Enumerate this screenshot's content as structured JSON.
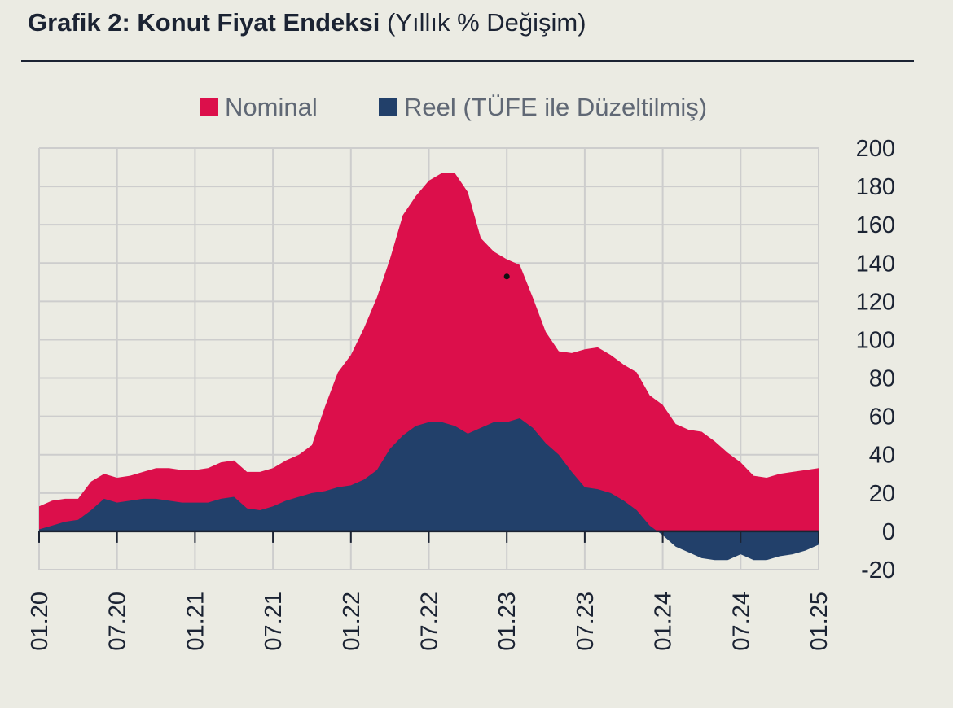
{
  "header": {
    "title_main": "Grafik 2: Konut Fiyat Endeksi",
    "title_sub": "(Yıllık % Değişim)"
  },
  "colors": {
    "nominal": "#dc0f4b",
    "reel": "#22406a",
    "grid": "#cdcdcd",
    "background": "#ebebe3",
    "text": "#1b2333"
  },
  "chart_data": {
    "type": "area",
    "title": "Grafik 2: Konut Fiyat Endeksi",
    "subtitle": "(Yıllık % Değişim)",
    "xlabel": "",
    "ylabel": "",
    "y_axis_position": "right",
    "ylim": [
      -20,
      200
    ],
    "yticks": [
      200,
      180,
      160,
      140,
      120,
      100,
      80,
      60,
      40,
      20,
      0,
      -20
    ],
    "xtick_labels": [
      "01.20",
      "07.20",
      "01.21",
      "07.21",
      "01.22",
      "07.22",
      "01.23",
      "07.23",
      "01.24",
      "07.24",
      "01.25"
    ],
    "grid": true,
    "legend_position": "top-center",
    "x": [
      "01.20",
      "02.20",
      "03.20",
      "04.20",
      "05.20",
      "06.20",
      "07.20",
      "08.20",
      "09.20",
      "10.20",
      "11.20",
      "12.20",
      "01.21",
      "02.21",
      "03.21",
      "04.21",
      "05.21",
      "06.21",
      "07.21",
      "08.21",
      "09.21",
      "10.21",
      "11.21",
      "12.21",
      "01.22",
      "02.22",
      "03.22",
      "04.22",
      "05.22",
      "06.22",
      "07.22",
      "08.22",
      "09.22",
      "10.22",
      "11.22",
      "12.22",
      "01.23",
      "02.23",
      "03.23",
      "04.23",
      "05.23",
      "06.23",
      "07.23",
      "08.23",
      "09.23",
      "10.23",
      "11.23",
      "12.23",
      "01.24",
      "02.24",
      "03.24",
      "04.24",
      "05.24",
      "06.24",
      "07.24",
      "08.24",
      "09.24",
      "10.24",
      "11.24",
      "12.24",
      "01.25"
    ],
    "series": [
      {
        "name": "Nominal",
        "values": [
          13,
          16,
          17,
          17,
          26,
          30,
          28,
          29,
          31,
          33,
          33,
          32,
          32,
          33,
          36,
          37,
          31,
          31,
          33,
          37,
          40,
          45,
          65,
          83,
          92,
          106,
          122,
          142,
          165,
          175,
          183,
          187,
          187,
          177,
          153,
          146,
          142,
          139,
          122,
          104,
          94,
          93,
          95,
          96,
          92,
          87,
          83,
          71,
          66,
          56,
          53,
          52,
          47,
          41,
          36,
          29,
          28,
          30,
          31,
          32,
          33
        ]
      },
      {
        "name": "Reel (TÜFE ile Düzeltilmiş)",
        "values": [
          1,
          3,
          5,
          6,
          11,
          17,
          15,
          16,
          17,
          17,
          16,
          15,
          15,
          15,
          17,
          18,
          12,
          11,
          13,
          16,
          18,
          20,
          21,
          23,
          24,
          27,
          32,
          43,
          50,
          55,
          57,
          57,
          55,
          51,
          54,
          57,
          57,
          59,
          54,
          46,
          40,
          31,
          23,
          22,
          20,
          16,
          11,
          3,
          -2,
          -8,
          -11,
          -14,
          -15,
          -15,
          -12,
          -15,
          -15,
          -13,
          -12,
          -10,
          -7
        ]
      }
    ],
    "annotations": [
      {
        "type": "dot",
        "x": "01.23",
        "y": 133
      }
    ]
  }
}
